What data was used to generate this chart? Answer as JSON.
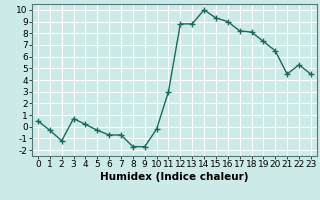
{
  "x": [
    0,
    1,
    2,
    3,
    4,
    5,
    6,
    7,
    8,
    9,
    10,
    11,
    12,
    13,
    14,
    15,
    16,
    17,
    18,
    19,
    20,
    21,
    22,
    23
  ],
  "y": [
    0.5,
    -0.3,
    -1.2,
    0.7,
    0.2,
    -0.3,
    -0.7,
    -0.7,
    -1.7,
    -1.7,
    -0.2,
    3.0,
    8.8,
    8.8,
    10.0,
    9.3,
    9.0,
    8.2,
    8.1,
    7.3,
    6.5,
    4.5,
    5.3,
    4.5
  ],
  "line_color": "#1a6b5e",
  "marker": "o",
  "marker_size": 2,
  "bg_color": "#cceae7",
  "grid_color": "#ffffff",
  "xlabel": "Humidex (Indice chaleur)",
  "xlim": [
    -0.5,
    23.5
  ],
  "ylim": [
    -2.5,
    10.5
  ],
  "xticks": [
    0,
    1,
    2,
    3,
    4,
    5,
    6,
    7,
    8,
    9,
    10,
    11,
    12,
    13,
    14,
    15,
    16,
    17,
    18,
    19,
    20,
    21,
    22,
    23
  ],
  "yticks": [
    -2,
    -1,
    0,
    1,
    2,
    3,
    4,
    5,
    6,
    7,
    8,
    9,
    10
  ],
  "xlabel_fontsize": 7.5,
  "tick_fontsize": 6.5,
  "line_width": 1.0
}
